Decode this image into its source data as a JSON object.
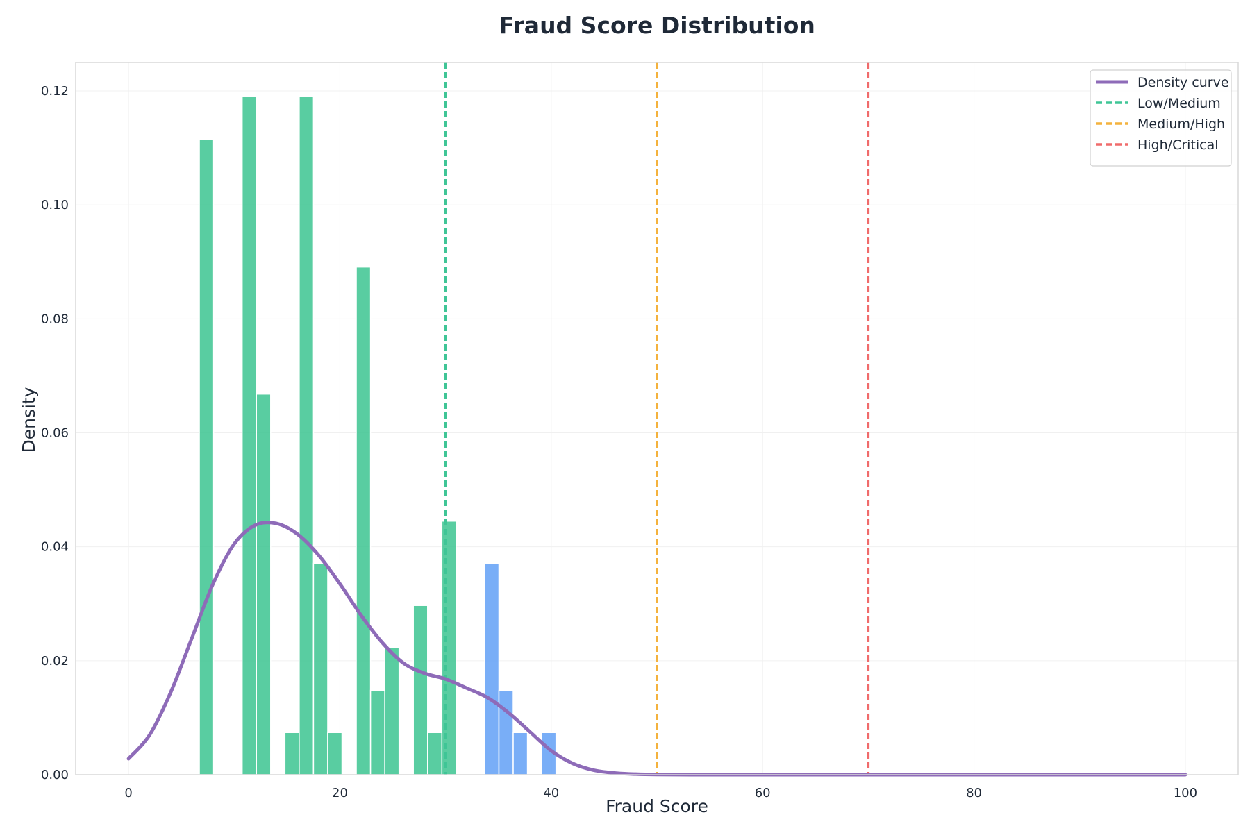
{
  "chart_data": {
    "type": "bar",
    "title": "Fraud Score Distribution",
    "xlabel": "Fraud Score",
    "ylabel": "Density",
    "xlim": [
      -5,
      105
    ],
    "ylim": [
      0,
      0.125
    ],
    "x_ticks": [
      0,
      20,
      40,
      60,
      80,
      100
    ],
    "y_ticks": [
      0.0,
      0.02,
      0.04,
      0.06,
      0.08,
      0.1,
      0.12
    ],
    "grid": true,
    "legend_position": "top-right",
    "bin_width": 1.35,
    "histogram": [
      {
        "x_start": 6.7,
        "x_end": 8.05,
        "density": 0.1115,
        "color": "#34c28c"
      },
      {
        "x_start": 10.75,
        "x_end": 12.1,
        "density": 0.119,
        "color": "#34c28c"
      },
      {
        "x_start": 12.1,
        "x_end": 13.45,
        "density": 0.0668,
        "color": "#34c28c"
      },
      {
        "x_start": 14.8,
        "x_end": 16.15,
        "density": 0.0074,
        "color": "#34c28c"
      },
      {
        "x_start": 16.15,
        "x_end": 17.5,
        "density": 0.119,
        "color": "#34c28c"
      },
      {
        "x_start": 17.5,
        "x_end": 18.85,
        "density": 0.0371,
        "color": "#34c28c"
      },
      {
        "x_start": 18.85,
        "x_end": 20.2,
        "density": 0.0074,
        "color": "#34c28c"
      },
      {
        "x_start": 21.55,
        "x_end": 22.9,
        "density": 0.0891,
        "color": "#34c28c"
      },
      {
        "x_start": 22.9,
        "x_end": 24.25,
        "density": 0.0148,
        "color": "#34c28c"
      },
      {
        "x_start": 24.25,
        "x_end": 25.6,
        "density": 0.0223,
        "color": "#34c28c"
      },
      {
        "x_start": 26.95,
        "x_end": 28.3,
        "density": 0.0297,
        "color": "#34c28c"
      },
      {
        "x_start": 28.3,
        "x_end": 29.65,
        "density": 0.0074,
        "color": "#34c28c"
      },
      {
        "x_start": 29.65,
        "x_end": 31.0,
        "density": 0.0445,
        "color": "#34c28c"
      },
      {
        "x_start": 33.7,
        "x_end": 35.05,
        "density": 0.0371,
        "color": "#5b9cf5"
      },
      {
        "x_start": 35.05,
        "x_end": 36.4,
        "density": 0.0148,
        "color": "#5b9cf5"
      },
      {
        "x_start": 36.4,
        "x_end": 37.75,
        "density": 0.0074,
        "color": "#5b9cf5"
      },
      {
        "x_start": 39.1,
        "x_end": 40.45,
        "density": 0.0074,
        "color": "#5b9cf5"
      }
    ],
    "density_curve": {
      "name": "Density curve",
      "color": "#8e6bb8",
      "x": [
        0,
        2,
        4,
        6,
        8,
        10,
        12,
        14,
        16,
        18,
        20,
        22,
        24,
        26,
        28,
        30,
        32,
        34,
        36,
        38,
        40,
        42,
        44,
        46,
        48,
        50,
        55,
        60,
        70,
        80,
        90,
        100
      ],
      "y": [
        0.0028,
        0.007,
        0.0145,
        0.024,
        0.0335,
        0.0405,
        0.0438,
        0.0441,
        0.0422,
        0.0385,
        0.0335,
        0.028,
        0.0232,
        0.0196,
        0.0178,
        0.0168,
        0.0152,
        0.0135,
        0.0108,
        0.0075,
        0.0042,
        0.002,
        0.0008,
        0.0003,
        0.0001,
        3e-05,
        0.0,
        0.0,
        0.0,
        0.0,
        0.0,
        0.0
      ]
    },
    "thresholds": [
      {
        "name": "Low/Medium",
        "x": 30,
        "color": "#3fc596"
      },
      {
        "name": "Medium/High",
        "x": 50,
        "color": "#f4b23d"
      },
      {
        "name": "High/Critical",
        "x": 70,
        "color": "#f06b6b"
      }
    ]
  }
}
